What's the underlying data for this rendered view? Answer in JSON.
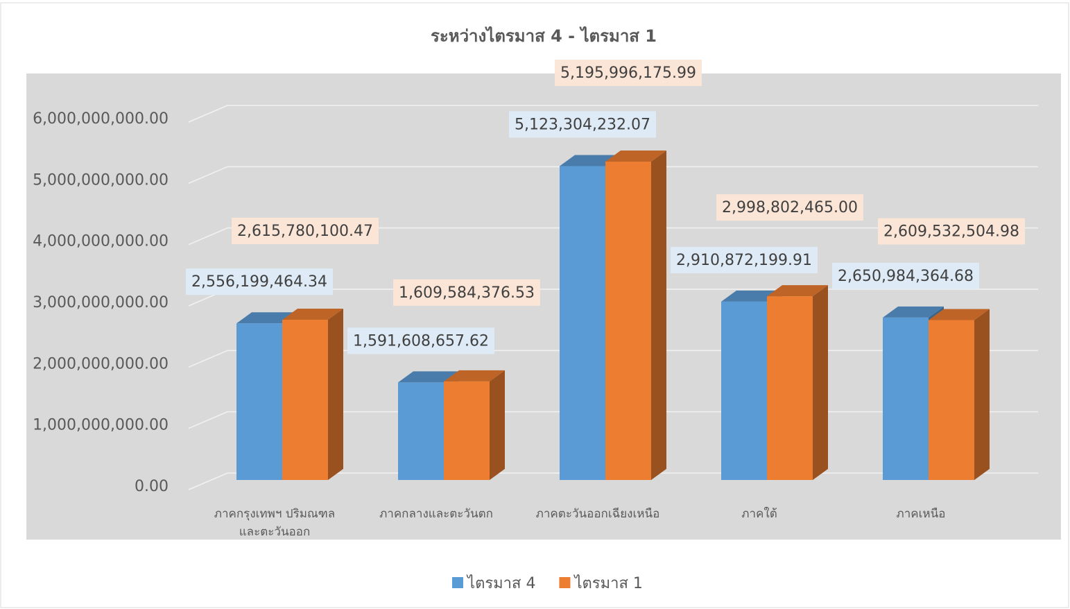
{
  "chart_data": {
    "type": "bar3d",
    "title": "ระหว่างไตรมาส 4 - ไตรมาส 1",
    "categories": [
      "ภาคกรุงเทพฯ ปริมณฑล และตะวันออก",
      "ภาคกลางและตะวันตก",
      "ภาคตะวันออกเฉียงเหนือ",
      "ภาคใต้",
      "ภาคเหนือ"
    ],
    "series": [
      {
        "name": "ไตรมาส 4",
        "color": "#5b9bd5",
        "values": [
          2556199464.34,
          1591608657.62,
          5123304232.07,
          2910872199.91,
          2650984364.68
        ],
        "value_labels": [
          "2,556,199,464.34",
          "1,591,608,657.62",
          "5,123,304,232.07",
          "2,910,872,199.91",
          "2,650,984,364.68"
        ]
      },
      {
        "name": "ไตรมาส 1",
        "color": "#ed7d31",
        "values": [
          2615780100.47,
          1609584376.53,
          5195996175.99,
          2998802465.0,
          2609532504.98
        ],
        "value_labels": [
          "2,615,780,100.47",
          "1,609,584,376.53",
          "5,195,996,175.99",
          "2,998,802,465.00",
          "2,609,532,504.98"
        ]
      }
    ],
    "ylim": [
      0,
      6000000000
    ],
    "yticks": [
      {
        "value": 0,
        "label": "0.00"
      },
      {
        "value": 1000000000,
        "label": "1,000,000,000.00"
      },
      {
        "value": 2000000000,
        "label": "2,000,000,000.00"
      },
      {
        "value": 3000000000,
        "label": "3,000,000,000.00"
      },
      {
        "value": 4000000000,
        "label": "4,000,000,000.00"
      },
      {
        "value": 5000000000,
        "label": "5,000,000,000.00"
      },
      {
        "value": 6000000000,
        "label": "6,000,000,000.00"
      }
    ],
    "grid": true,
    "legend": "bottom"
  }
}
